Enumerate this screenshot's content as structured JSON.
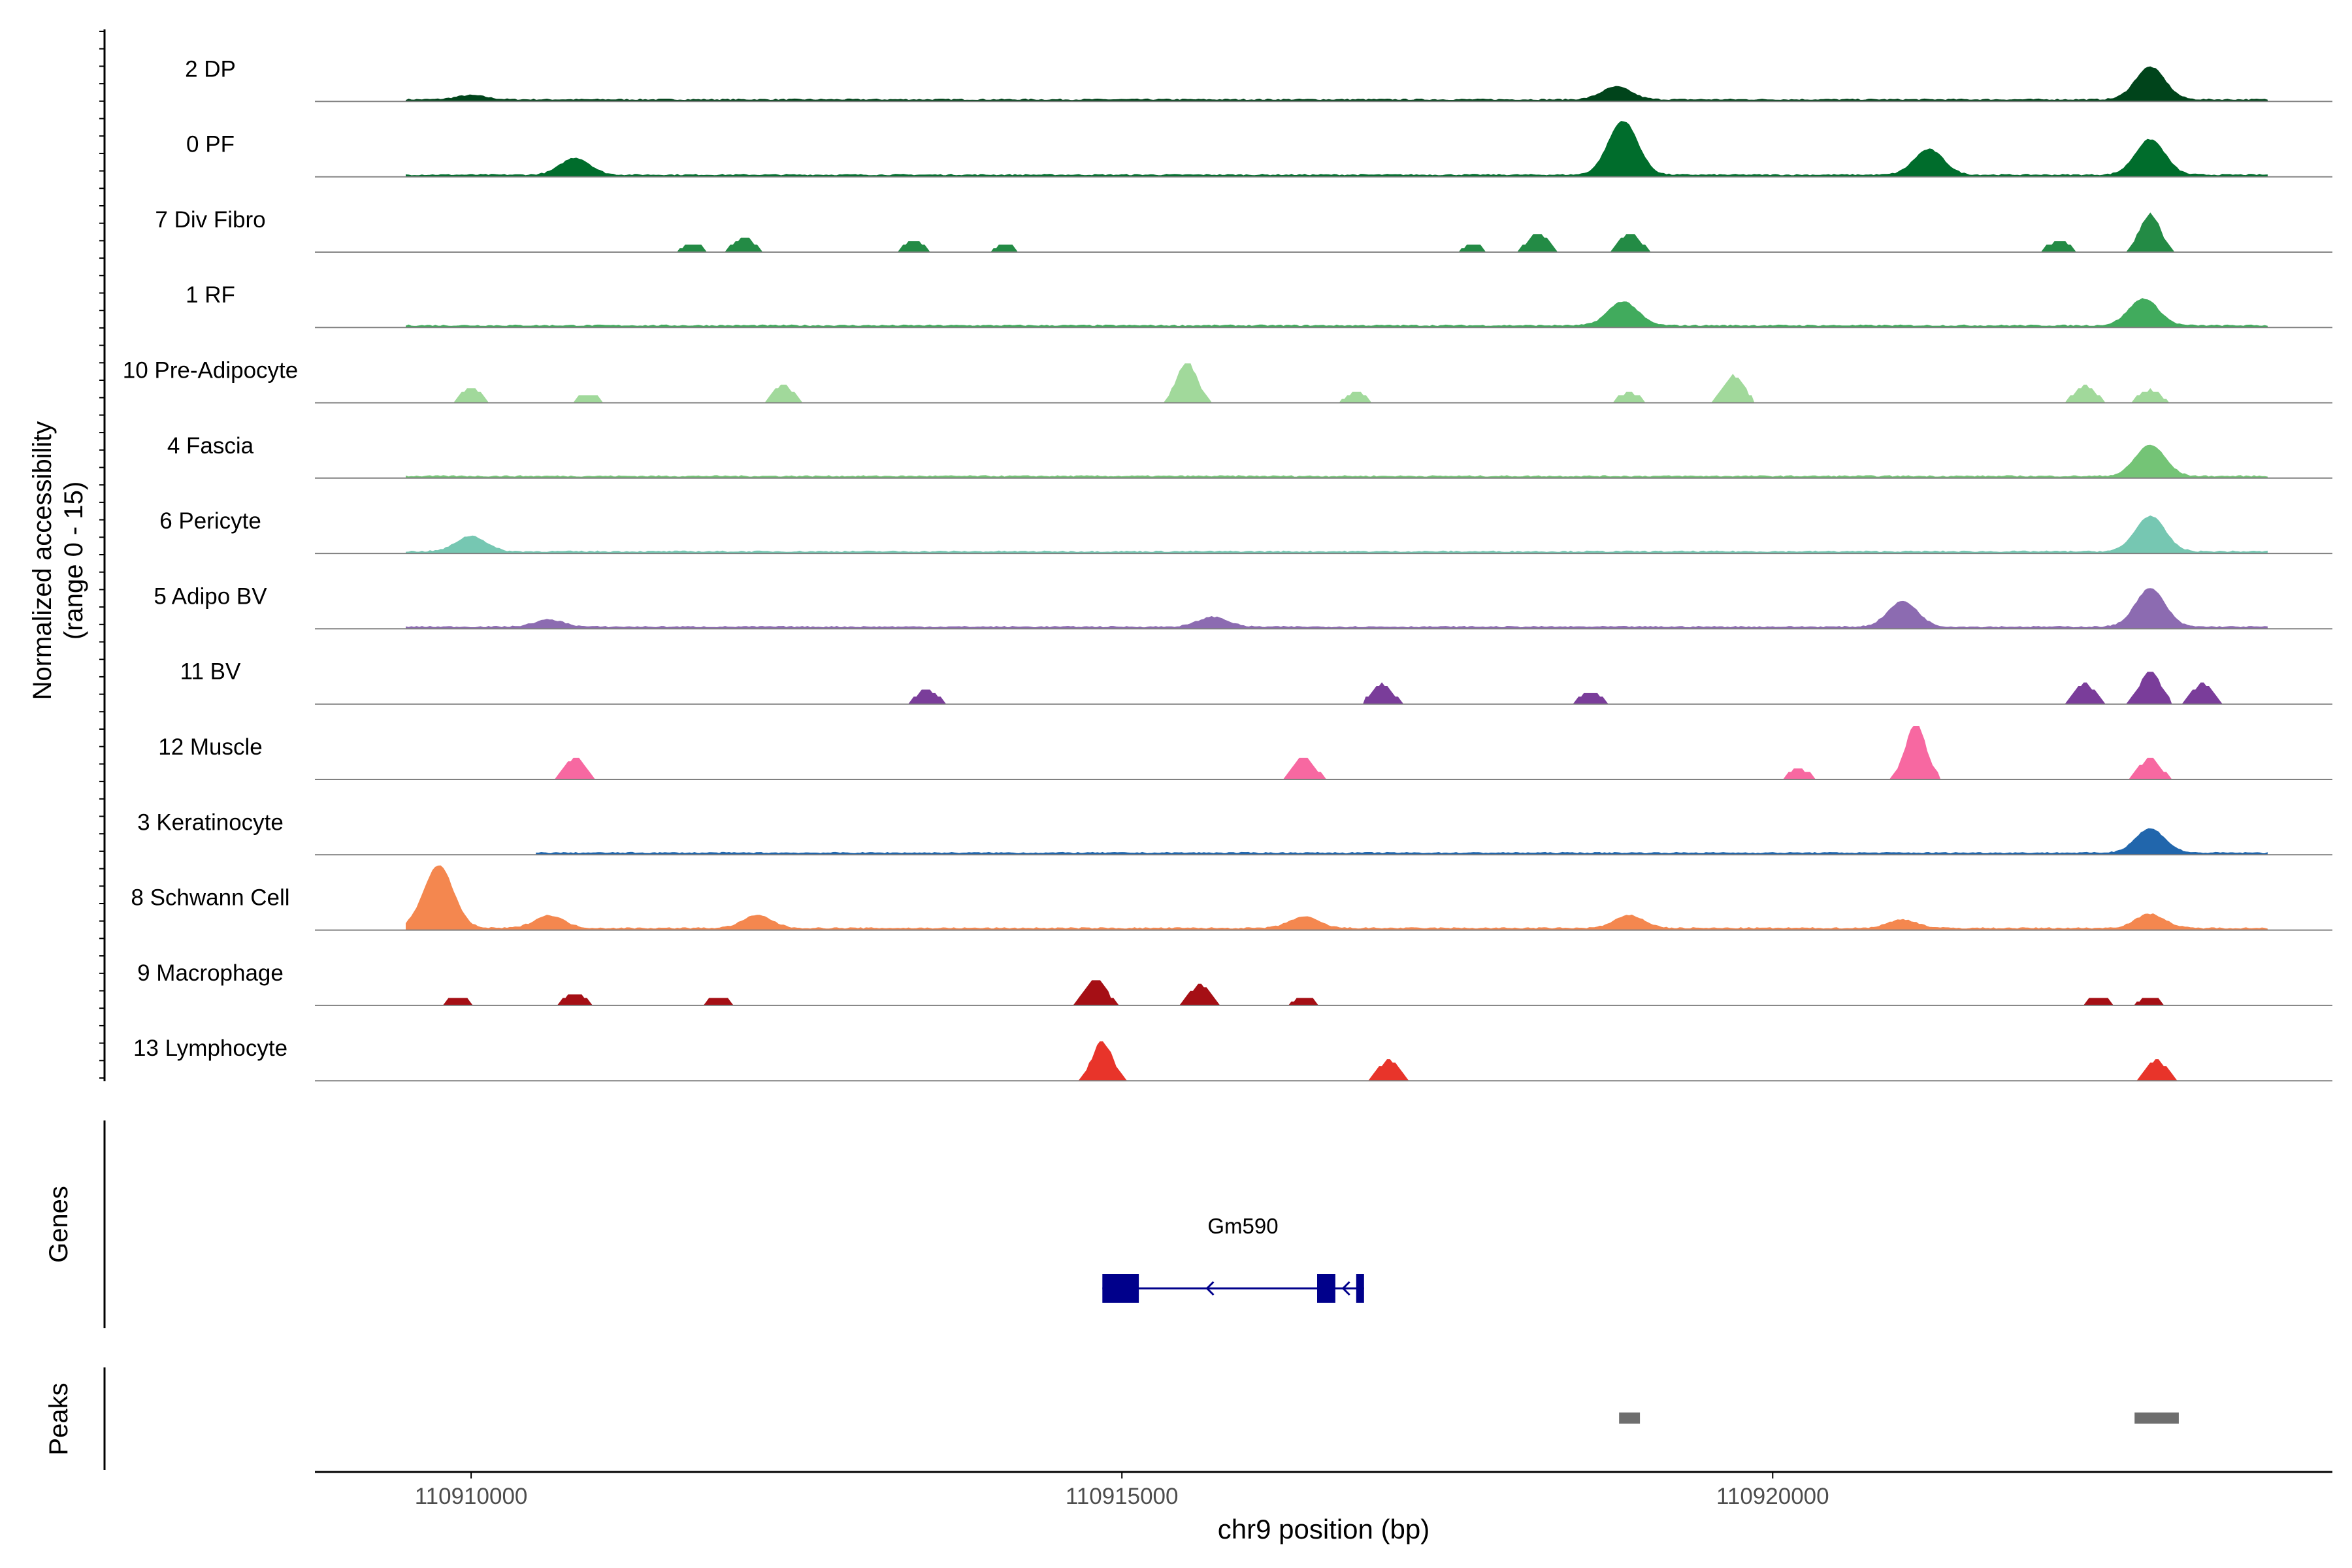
{
  "chart_data": {
    "type": "area",
    "ylabel_line1": "Normalized accessibility",
    "ylabel_line2": "(range 0 - 15)",
    "xlabel": "chr9 position (bp)",
    "xlim": [
      110908800,
      110924300
    ],
    "xticks": [
      110910000,
      110915000,
      110920000
    ],
    "xtick_labels": [
      "110910000",
      "110915000",
      "110920000"
    ],
    "genes_label": "Genes",
    "peaks_label": "Peaks",
    "gene": {
      "name": "Gm590",
      "color": "#00008b",
      "start": 110914850,
      "end": 110916860,
      "strand": "-",
      "exons": [
        [
          110914850,
          110915130
        ],
        [
          110916500,
          110916640
        ],
        [
          110916800,
          110916860
        ]
      ]
    },
    "peaks": {
      "color": "#6e6e6e",
      "regions": [
        [
          110918820,
          110918980
        ],
        [
          110922780,
          110923120
        ]
      ]
    },
    "tracks": [
      {
        "name": "2 DP",
        "color": "#00441b",
        "style": "smooth",
        "x0": 110909500,
        "x1": 110923800,
        "peaks": [
          [
            110910000,
            0.3
          ],
          [
            110918800,
            0.9
          ],
          [
            110922900,
            2.3
          ]
        ]
      },
      {
        "name": "0 PF",
        "color": "#006d2c",
        "style": "smooth",
        "x0": 110909500,
        "x1": 110923800,
        "peaks": [
          [
            110910800,
            1.2
          ],
          [
            110918850,
            3.8
          ],
          [
            110921200,
            1.8
          ],
          [
            110922900,
            2.5
          ]
        ]
      },
      {
        "name": "7 Div Fibro",
        "color": "#238b45",
        "style": "blocks",
        "x0": 110909500,
        "x1": 110923800,
        "peaks": [
          [
            110911700,
            0.6
          ],
          [
            110912100,
            1.0
          ],
          [
            110913400,
            0.8
          ],
          [
            110914100,
            0.5
          ],
          [
            110917700,
            0.5
          ],
          [
            110918200,
            1.3
          ],
          [
            110918900,
            1.3
          ],
          [
            110922200,
            0.8
          ],
          [
            110922900,
            2.7
          ]
        ]
      },
      {
        "name": "1 RF",
        "color": "#41ab5d",
        "style": "smooth",
        "x0": 110909500,
        "x1": 110923800,
        "peaks": [
          [
            110918850,
            1.7
          ],
          [
            110922850,
            1.9
          ]
        ]
      },
      {
        "name": "10 Pre-Adipocyte",
        "color": "#a1d99b",
        "style": "blocks",
        "x0": 110909500,
        "x1": 110923800,
        "peaks": [
          [
            110910000,
            1.0
          ],
          [
            110910900,
            0.6
          ],
          [
            110912400,
            1.2
          ],
          [
            110915500,
            2.8
          ],
          [
            110916800,
            0.7
          ],
          [
            110918900,
            0.7
          ],
          [
            110919700,
            1.9
          ],
          [
            110922400,
            1.2
          ],
          [
            110922900,
            0.9
          ]
        ]
      },
      {
        "name": "4 Fascia",
        "color": "#74c476",
        "style": "smooth",
        "x0": 110909500,
        "x1": 110923800,
        "peaks": [
          [
            110922900,
            2.2
          ]
        ]
      },
      {
        "name": "6 Pericyte",
        "color": "#76c7b2",
        "style": "smooth",
        "x0": 110909500,
        "x1": 110923800,
        "peaks": [
          [
            110910000,
            1.1
          ],
          [
            110922900,
            2.5
          ]
        ]
      },
      {
        "name": "5 Adipo BV",
        "color": "#8c6bb1",
        "style": "smooth",
        "x0": 110909500,
        "x1": 110923800,
        "peaks": [
          [
            110910600,
            0.5
          ],
          [
            110915700,
            0.7
          ],
          [
            110921000,
            1.8
          ],
          [
            110922900,
            2.7
          ]
        ]
      },
      {
        "name": "11 BV",
        "color": "#7a3d9a",
        "style": "blocks",
        "x0": 110909500,
        "x1": 110923800,
        "peaks": [
          [
            110913500,
            1.0
          ],
          [
            110917000,
            1.4
          ],
          [
            110918600,
            0.8
          ],
          [
            110922400,
            1.4
          ],
          [
            110922900,
            2.3
          ],
          [
            110923300,
            1.4
          ]
        ]
      },
      {
        "name": "12 Muscle",
        "color": "#f768a1",
        "style": "blocks",
        "x0": 110909500,
        "x1": 110923800,
        "peaks": [
          [
            110910800,
            1.5
          ],
          [
            110916400,
            1.6
          ],
          [
            110920200,
            0.7
          ],
          [
            110921100,
            3.8
          ],
          [
            110922900,
            1.5
          ]
        ]
      },
      {
        "name": "3 Keratinocyte",
        "color": "#2166ac",
        "style": "smooth",
        "x0": 110910500,
        "x1": 110923800,
        "peaks": [
          [
            110922900,
            1.7
          ]
        ]
      },
      {
        "name": "8 Schwann Cell",
        "color": "#f4874f",
        "style": "smooth",
        "x0": 110909500,
        "x1": 110923800,
        "peaks": [
          [
            110909750,
            4.4
          ],
          [
            110910600,
            0.9
          ],
          [
            110912200,
            0.9
          ],
          [
            110916400,
            0.8
          ],
          [
            110918900,
            0.9
          ],
          [
            110921000,
            0.6
          ],
          [
            110922900,
            1.0
          ]
        ]
      },
      {
        "name": "9 Macrophage",
        "color": "#a50f15",
        "style": "blocks",
        "x0": 110909500,
        "x1": 110923800,
        "peaks": [
          [
            110909900,
            0.6
          ],
          [
            110910800,
            0.8
          ],
          [
            110911900,
            0.6
          ],
          [
            110914800,
            1.8
          ],
          [
            110915600,
            1.4
          ],
          [
            110916400,
            0.6
          ],
          [
            110922500,
            0.6
          ],
          [
            110922900,
            0.6
          ]
        ]
      },
      {
        "name": "13 Lymphocyte",
        "color": "#e8342a",
        "style": "blocks",
        "x0": 110909500,
        "x1": 110923800,
        "peaks": [
          [
            110914850,
            2.7
          ],
          [
            110917050,
            1.4
          ],
          [
            110922950,
            1.4
          ]
        ]
      }
    ]
  }
}
